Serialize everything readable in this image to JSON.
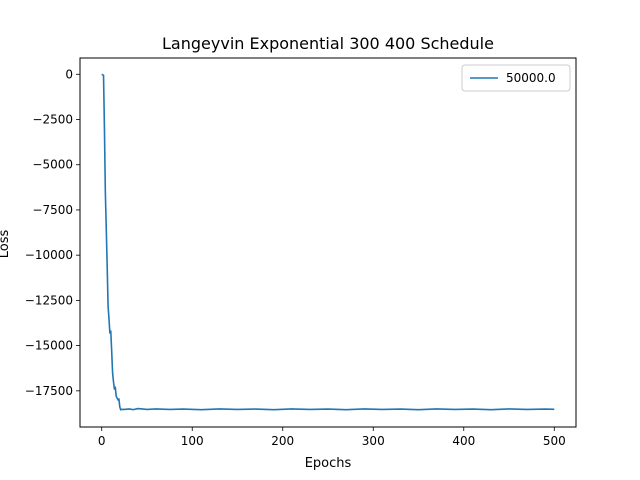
{
  "chart_data": {
    "type": "line",
    "title": "Langeyvin Exponential 300 400 Schedule",
    "xlabel": "Epochs",
    "ylabel": "Loss",
    "xlim": [
      -24,
      524
    ],
    "ylim": [
      -19500,
      900
    ],
    "xticks": [
      0,
      100,
      200,
      300,
      400,
      500
    ],
    "yticks": [
      0,
      -2500,
      -5000,
      -7500,
      -10000,
      -12500,
      -15000,
      -17500
    ],
    "ytick_labels": [
      "0",
      "−2500",
      "−5000",
      "−7500",
      "−10000",
      "−12500",
      "−15000",
      "−17500"
    ],
    "grid": false,
    "legend_position": "top-right",
    "series": [
      {
        "name": "50000.0",
        "color": "#1f77b4",
        "points": [
          [
            0,
            0
          ],
          [
            1,
            -30
          ],
          [
            2,
            -60
          ],
          [
            3,
            -3000
          ],
          [
            4,
            -6500
          ],
          [
            5,
            -8500
          ],
          [
            6,
            -10500
          ],
          [
            7,
            -12800
          ],
          [
            8,
            -13500
          ],
          [
            9,
            -14300
          ],
          [
            10,
            -14200
          ],
          [
            11,
            -15300
          ],
          [
            12,
            -16500
          ],
          [
            13,
            -17000
          ],
          [
            14,
            -17400
          ],
          [
            15,
            -17300
          ],
          [
            16,
            -17800
          ],
          [
            17,
            -17900
          ],
          [
            18,
            -18000
          ],
          [
            19,
            -17950
          ],
          [
            20,
            -18400
          ],
          [
            21,
            -18550
          ],
          [
            22,
            -18520
          ],
          [
            25,
            -18530
          ],
          [
            30,
            -18500
          ],
          [
            35,
            -18540
          ],
          [
            40,
            -18480
          ],
          [
            50,
            -18530
          ],
          [
            60,
            -18500
          ],
          [
            75,
            -18530
          ],
          [
            90,
            -18510
          ],
          [
            110,
            -18540
          ],
          [
            130,
            -18500
          ],
          [
            150,
            -18530
          ],
          [
            170,
            -18510
          ],
          [
            190,
            -18540
          ],
          [
            210,
            -18500
          ],
          [
            230,
            -18530
          ],
          [
            250,
            -18510
          ],
          [
            270,
            -18540
          ],
          [
            290,
            -18500
          ],
          [
            310,
            -18530
          ],
          [
            330,
            -18510
          ],
          [
            350,
            -18540
          ],
          [
            370,
            -18500
          ],
          [
            390,
            -18530
          ],
          [
            410,
            -18510
          ],
          [
            430,
            -18540
          ],
          [
            450,
            -18500
          ],
          [
            470,
            -18530
          ],
          [
            490,
            -18510
          ],
          [
            500,
            -18520
          ]
        ]
      }
    ]
  }
}
